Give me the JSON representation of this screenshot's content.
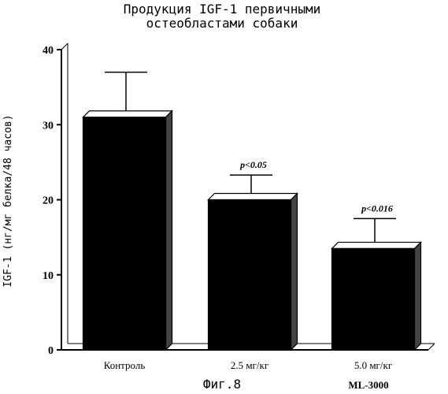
{
  "chart_data": {
    "type": "bar",
    "title_lines": [
      "Продукция IGF-1 первичными",
      "остеобластами собаки"
    ],
    "ylabel": "IGF-1  (нг/мг белка/48 часов)",
    "ylim": [
      0,
      40
    ],
    "yticks": [
      0,
      10,
      20,
      30,
      40
    ],
    "categories": [
      "Контроль",
      "2.5 мг/кг",
      "5.0 мг/кг"
    ],
    "values": [
      31,
      20,
      13.5
    ],
    "error_upper": [
      37,
      23.3,
      17.5
    ],
    "annotations": [
      "",
      "p<0.05",
      "p<0.016"
    ],
    "sublabel": "ML-3000",
    "caption": "Фиг.8",
    "bar_color": "#000000",
    "grid": false
  }
}
